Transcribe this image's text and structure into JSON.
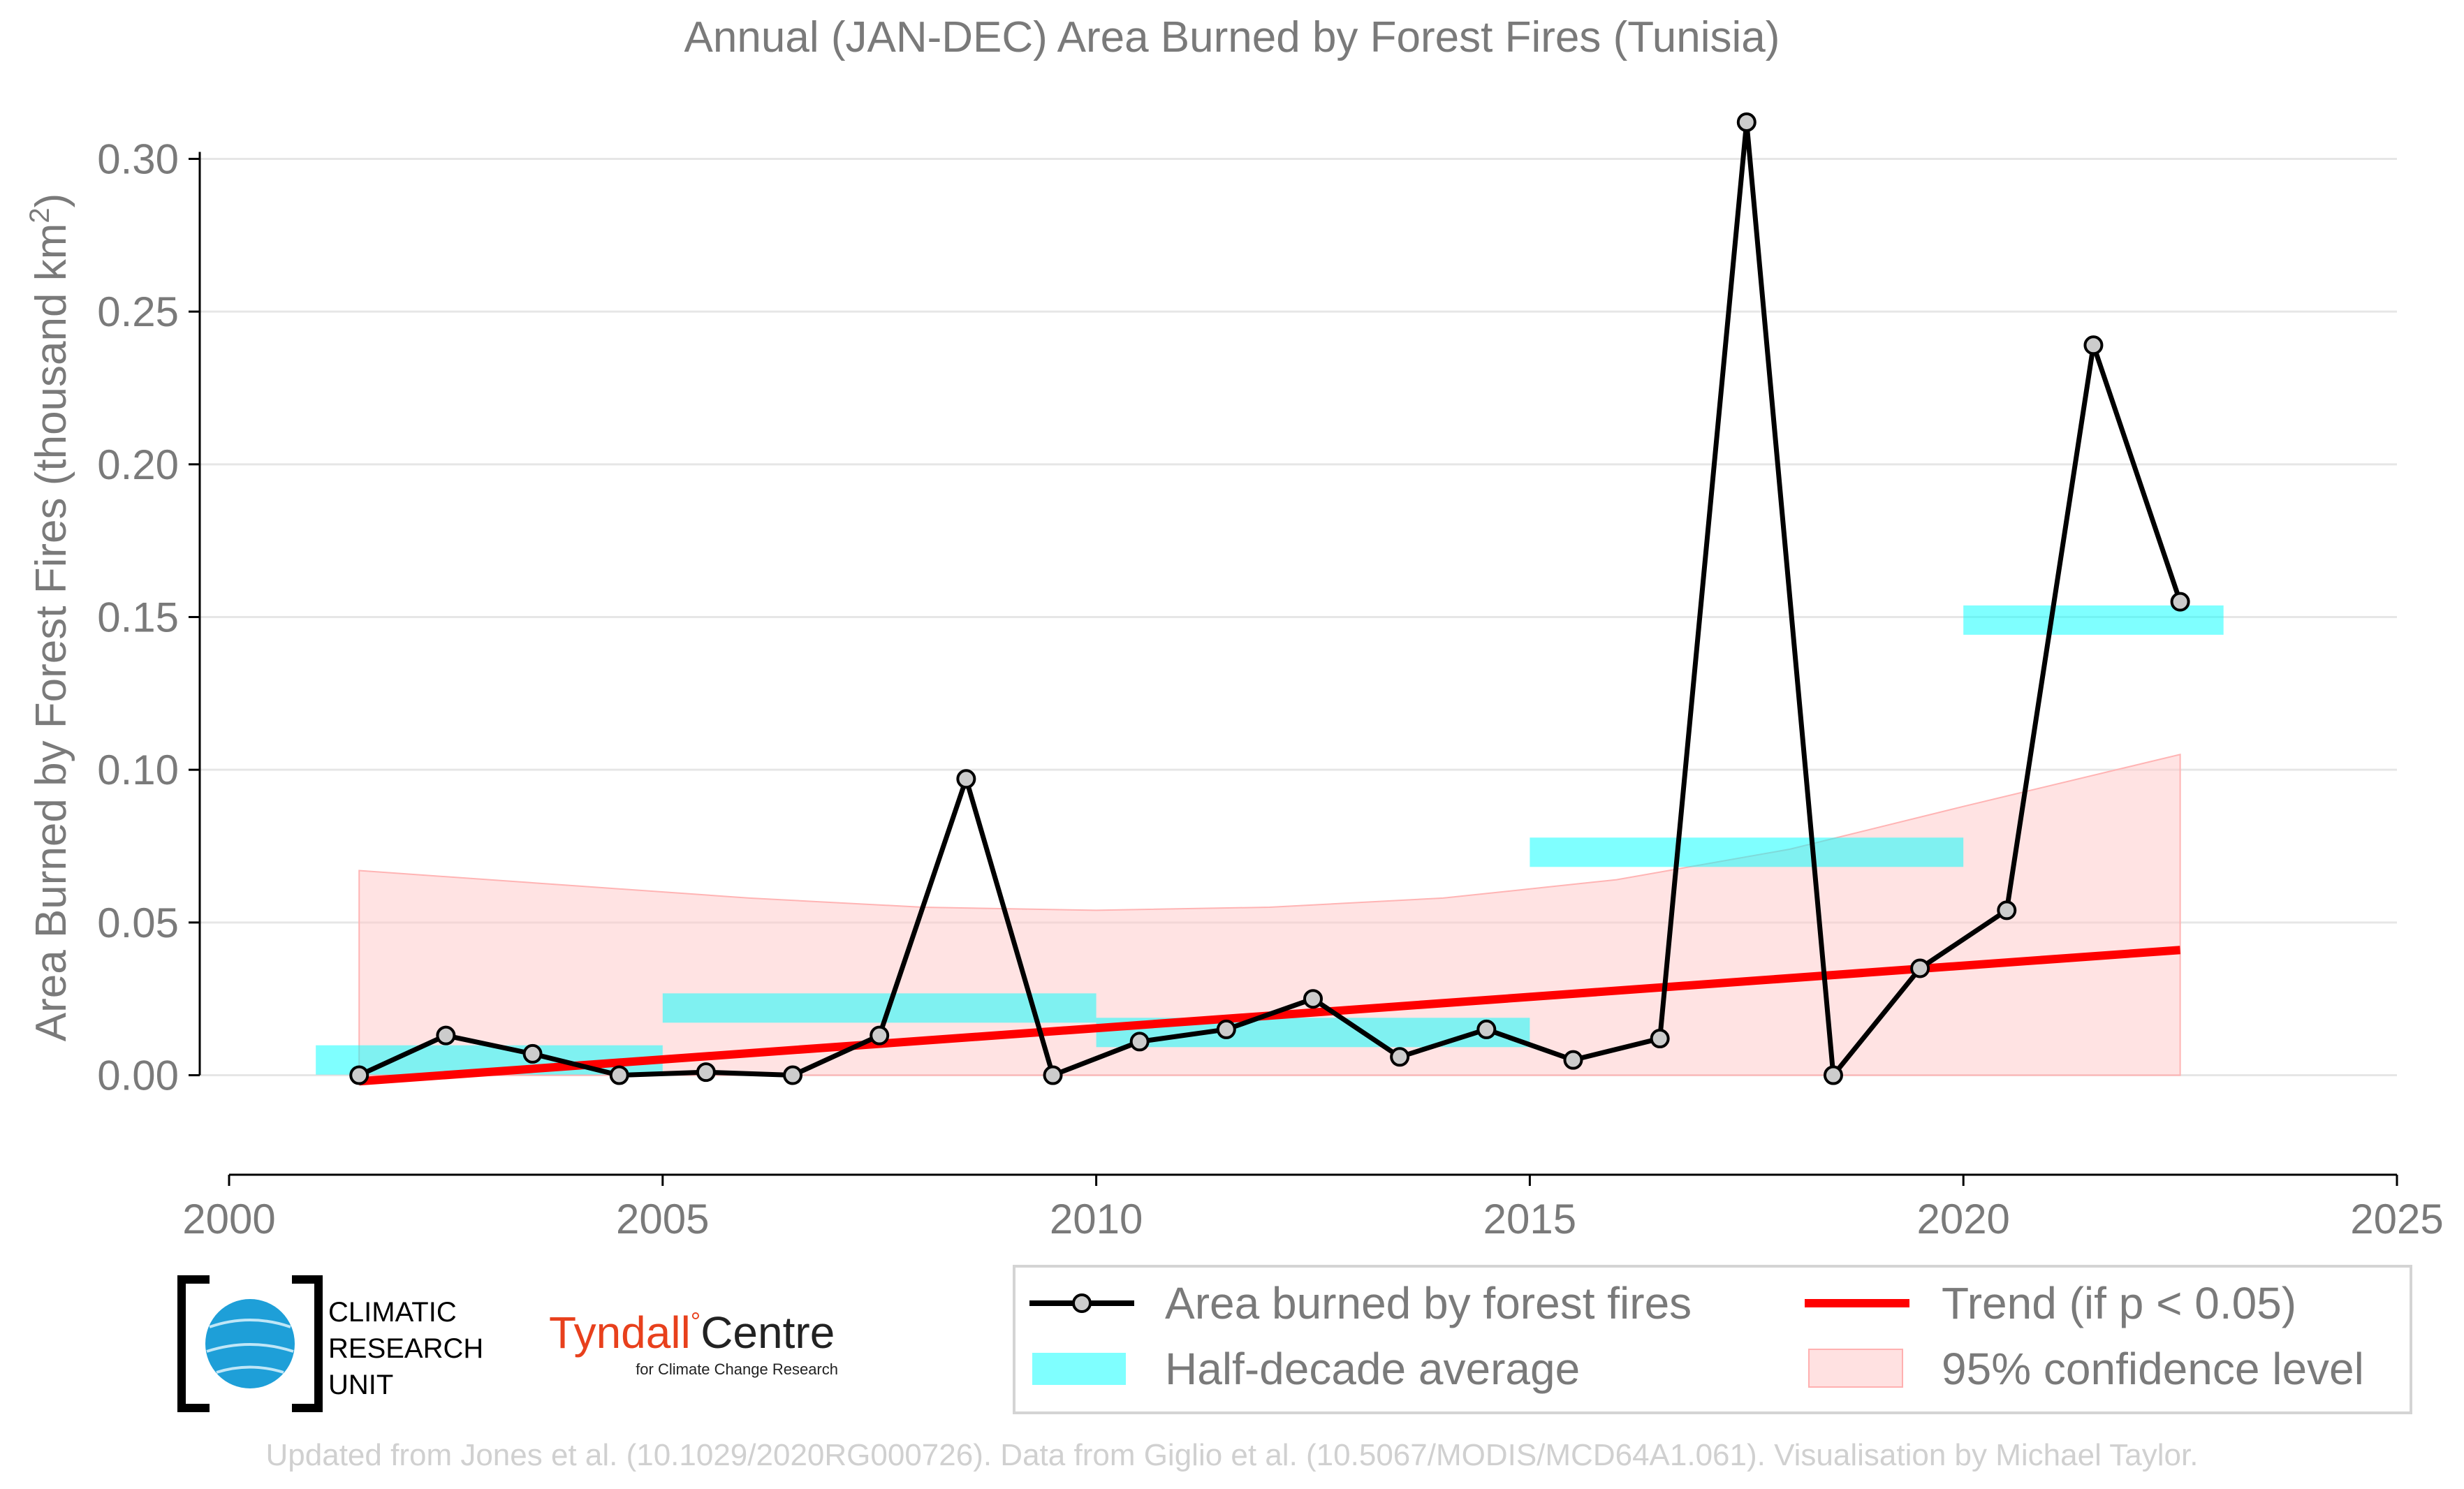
{
  "chart_data": {
    "type": "line",
    "title": "Annual (JAN-DEC) Area Burned by Forest Fires (Tunisia)",
    "ylabel_main": "Area Burned by Forest Fires (thousand km",
    "ylabel_sup": "2",
    "ylabel_end": ")",
    "xlim": [
      2000,
      2025
    ],
    "ylim": [
      -0.028,
      0.32
    ],
    "x_ticks": [
      2000,
      2005,
      2010,
      2015,
      2020,
      2025
    ],
    "x_tick_labels": [
      "2000",
      "2005",
      "2010",
      "2015",
      "2020",
      "2025"
    ],
    "y_ticks": [
      0.0,
      0.05,
      0.1,
      0.15,
      0.2,
      0.25,
      0.3
    ],
    "y_tick_labels": [
      "0.00",
      "0.05",
      "0.10",
      "0.15",
      "0.20",
      "0.25",
      "0.30"
    ],
    "grid": "horizontal",
    "legend_position": "bottom-right, below plot",
    "series": [
      {
        "name": "Area burned by forest fires",
        "color": "#000000",
        "marker_fill": "#cccccc",
        "x": [
          2001.5,
          2002.5,
          2003.5,
          2004.5,
          2005.5,
          2006.5,
          2007.5,
          2008.5,
          2009.5,
          2010.5,
          2011.5,
          2012.5,
          2013.5,
          2014.5,
          2015.5,
          2016.5,
          2017.5,
          2018.5,
          2019.5,
          2020.5,
          2021.5,
          2022.5
        ],
        "y": [
          0.0,
          0.013,
          0.007,
          0.0,
          0.001,
          0.0,
          0.013,
          0.097,
          0.0,
          0.011,
          0.015,
          0.025,
          0.006,
          0.015,
          0.005,
          0.012,
          0.312,
          0.0,
          0.035,
          0.054,
          0.239,
          0.155
        ]
      },
      {
        "name": "Half-decade average",
        "color": "#00ffff",
        "segments": [
          {
            "x0": 2001.0,
            "x1": 2005.0,
            "y": 0.005
          },
          {
            "x0": 2005.0,
            "x1": 2010.0,
            "y": 0.022
          },
          {
            "x0": 2010.0,
            "x1": 2015.0,
            "y": 0.014
          },
          {
            "x0": 2015.0,
            "x1": 2020.0,
            "y": 0.073
          },
          {
            "x0": 2020.0,
            "x1": 2023.0,
            "y": 0.149
          }
        ]
      },
      {
        "name": "Trend (if p < 0.05)",
        "color": "#ff0000",
        "x": [
          2001.5,
          2022.5
        ],
        "y": [
          -0.002,
          0.041
        ]
      },
      {
        "name": "95% confidence level",
        "color": "#ffc8c8",
        "x": [
          2001.5,
          2004.0,
          2006.0,
          2008.0,
          2010.0,
          2012.0,
          2014.0,
          2016.0,
          2018.0,
          2020.0,
          2022.5
        ],
        "upper": [
          0.067,
          0.062,
          0.058,
          0.055,
          0.054,
          0.055,
          0.058,
          0.064,
          0.074,
          0.088,
          0.105
        ],
        "lower": [
          0.0,
          0.0,
          0.0,
          0.0,
          0.0,
          0.0,
          0.0,
          0.0,
          0.0,
          0.0,
          0.0
        ]
      }
    ]
  },
  "legend": {
    "items": [
      {
        "label": "Area burned by forest fires"
      },
      {
        "label": "Trend (if p < 0.05)"
      },
      {
        "label": "Half-decade average"
      },
      {
        "label": "95% confidence level"
      }
    ]
  },
  "logos": {
    "cru_line1": "CLIMATIC",
    "cru_line2": "RESEARCH",
    "cru_line3": "UNIT",
    "tyndall_name": "Tyndall",
    "tyndall_degree": "°",
    "tyndall_centre": "Centre",
    "tyndall_sub": "for Climate Change Research"
  },
  "credit": "Updated from Jones et al. (10.1029/2020RG000726). Data from Giglio et al. (10.5067/MODIS/MCD64A1.061). Visualisation by Michael Taylor.",
  "colors": {
    "text_gray": "#7a7a7a",
    "grid": "#e6e6e6",
    "cru_blue": "#1e9fd8",
    "tyndall_red": "#e8401c"
  }
}
